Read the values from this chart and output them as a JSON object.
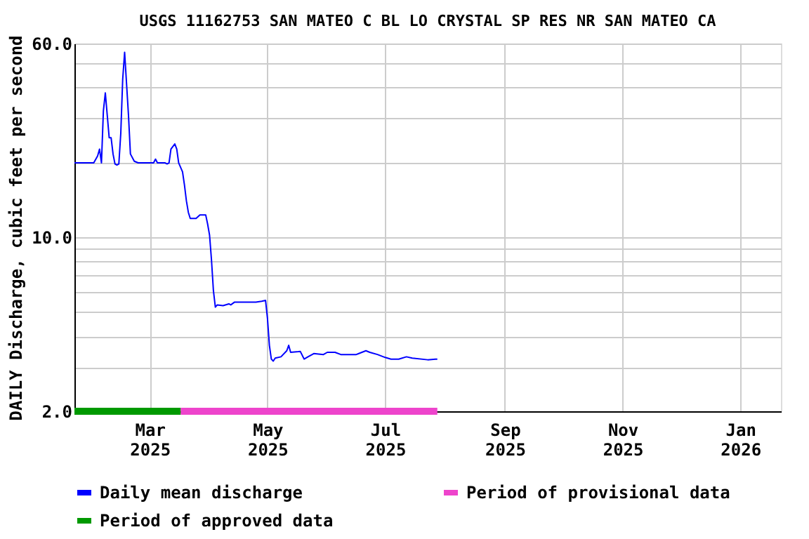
{
  "chart_data": {
    "type": "line",
    "title": "USGS 11162753 SAN MATEO C BL LO CRYSTAL SP RES NR SAN MATEO CA",
    "ylabel": "DAILY Discharge, cubic feet per second",
    "x": [
      "2025-01-21",
      "2025-01-31",
      "2025-02-02",
      "2025-02-03",
      "2025-02-04",
      "2025-02-05",
      "2025-02-06",
      "2025-02-07",
      "2025-02-08",
      "2025-02-09",
      "2025-02-10",
      "2025-02-11",
      "2025-02-12",
      "2025-02-13",
      "2025-02-14",
      "2025-02-15",
      "2025-02-16",
      "2025-02-17",
      "2025-02-18",
      "2025-02-19",
      "2025-02-21",
      "2025-02-23",
      "2025-03-03",
      "2025-03-04",
      "2025-03-05",
      "2025-03-09",
      "2025-03-10",
      "2025-03-11",
      "2025-03-12",
      "2025-03-14",
      "2025-03-15",
      "2025-03-16",
      "2025-03-18",
      "2025-03-19",
      "2025-03-20",
      "2025-03-21",
      "2025-03-22",
      "2025-03-25",
      "2025-03-27",
      "2025-03-30",
      "2025-03-31",
      "2025-04-01",
      "2025-04-02",
      "2025-04-03",
      "2025-04-04",
      "2025-04-05",
      "2025-04-08",
      "2025-04-11",
      "2025-04-12",
      "2025-04-14",
      "2025-04-25",
      "2025-04-28",
      "2025-04-30",
      "2025-05-01",
      "2025-05-02",
      "2025-05-03",
      "2025-05-04",
      "2025-05-05",
      "2025-05-08",
      "2025-05-11",
      "2025-05-12",
      "2025-05-13",
      "2025-05-17",
      "2025-05-18",
      "2025-05-20",
      "2025-05-22",
      "2025-05-25",
      "2025-05-30",
      "2025-06-01",
      "2025-06-05",
      "2025-06-08",
      "2025-06-16",
      "2025-06-21",
      "2025-06-23",
      "2025-06-27",
      "2025-07-01",
      "2025-07-04",
      "2025-07-08",
      "2025-07-12",
      "2025-07-15",
      "2025-07-23",
      "2025-07-27",
      "2025-07-28"
    ],
    "series": [
      {
        "name": "Daily mean discharge",
        "color": "#0000ff",
        "values": [
          19.9,
          19.9,
          21.2,
          22.6,
          19.9,
          32.2,
          38.0,
          30.9,
          25.1,
          25.1,
          21.6,
          19.7,
          19.5,
          19.7,
          26.1,
          43.1,
          55.3,
          41.3,
          30.9,
          21.6,
          20.2,
          19.9,
          19.9,
          20.6,
          19.9,
          19.9,
          19.7,
          19.9,
          22.6,
          23.7,
          22.6,
          19.9,
          18.3,
          16.2,
          14.0,
          12.6,
          11.9,
          11.9,
          12.3,
          12.3,
          11.3,
          10.2,
          8.1,
          6.1,
          5.24,
          5.35,
          5.31,
          5.4,
          5.35,
          5.49,
          5.49,
          5.53,
          5.58,
          4.72,
          3.68,
          3.24,
          3.18,
          3.27,
          3.31,
          3.5,
          3.68,
          3.45,
          3.47,
          3.48,
          3.24,
          3.31,
          3.41,
          3.38,
          3.45,
          3.45,
          3.38,
          3.38,
          3.5,
          3.45,
          3.38,
          3.29,
          3.24,
          3.24,
          3.31,
          3.27,
          3.22,
          3.24,
          3.24
        ]
      },
      {
        "name": "Period of provisional data",
        "color": "#ee44cc",
        "x": [
          "2025-03-17",
          "2025-07-28"
        ],
        "values": [
          2,
          2
        ]
      },
      {
        "name": "Period of approved data",
        "color": "#009900",
        "x": [
          "2025-01-21",
          "2025-03-17"
        ],
        "values": [
          2,
          2
        ]
      }
    ],
    "xlim": [
      "2025-01-21",
      "2026-01-22"
    ],
    "xticks": [
      {
        "value": "2025-03-01",
        "label": "Mar\n2025"
      },
      {
        "value": "2025-05-01",
        "label": "May\n2025"
      },
      {
        "value": "2025-07-01",
        "label": "Jul\n2025"
      },
      {
        "value": "2025-09-01",
        "label": "Sep\n2025"
      },
      {
        "value": "2025-11-01",
        "label": "Nov\n2025"
      },
      {
        "value": "2026-01-01",
        "label": "Jan\n2026"
      }
    ],
    "ylim": [
      2,
      60
    ],
    "yticks": [
      {
        "value": 2,
        "label": "2.0"
      },
      {
        "value": 3,
        "label": null
      },
      {
        "value": 4,
        "label": null
      },
      {
        "value": 5,
        "label": null
      },
      {
        "value": 6,
        "label": null
      },
      {
        "value": 7,
        "label": null
      },
      {
        "value": 8,
        "label": null
      },
      {
        "value": 9,
        "label": null
      },
      {
        "value": 10,
        "label": "10.0"
      },
      {
        "value": 20,
        "label": null
      },
      {
        "value": 30,
        "label": null
      },
      {
        "value": 40,
        "label": null
      },
      {
        "value": 50,
        "label": null
      },
      {
        "value": 60,
        "label": "60.0"
      }
    ],
    "log": "y",
    "grid": true,
    "legend": "bottom",
    "line_style": "solid",
    "marker": "none"
  }
}
